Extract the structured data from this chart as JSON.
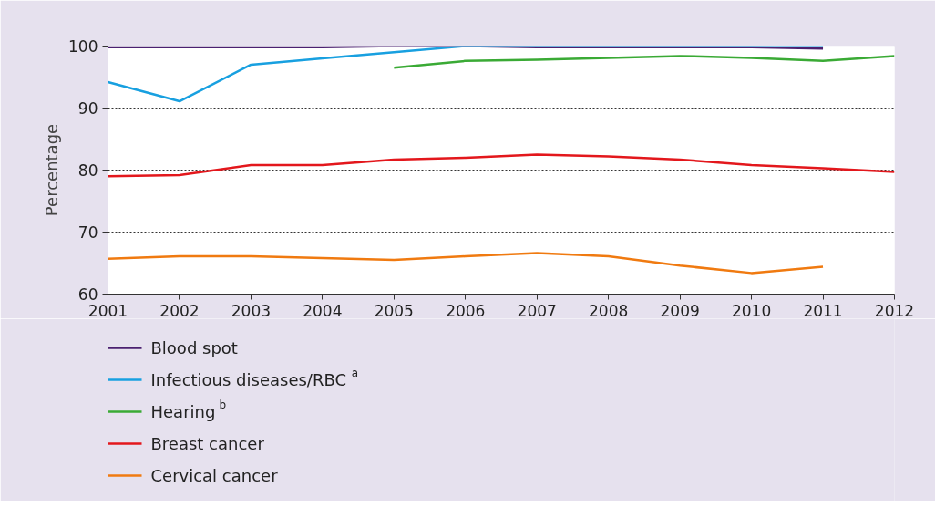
{
  "chart_data": {
    "type": "line",
    "ylabel": "Percentage",
    "x": [
      2001,
      2002,
      2003,
      2004,
      2005,
      2006,
      2007,
      2008,
      2009,
      2010,
      2011,
      2012
    ],
    "series": [
      {
        "name": "Blood spot",
        "color": "#4b2070",
        "values": [
          99.8,
          99.8,
          99.8,
          99.8,
          100,
          100,
          99.8,
          99.8,
          99.8,
          99.8,
          99.6,
          null
        ]
      },
      {
        "name": "Infectious diseases/RBC $^{a}$",
        "color": "#18a0e0",
        "values": [
          94.2,
          91.1,
          97,
          98,
          99,
          100,
          100,
          100,
          100,
          100,
          100,
          null
        ]
      },
      {
        "name": "Hearing $^{b}$",
        "color": "#3aaa35",
        "values": [
          null,
          null,
          null,
          null,
          96.5,
          97.6,
          97.8,
          98.1,
          98.4,
          98.1,
          97.6,
          98.4
        ]
      },
      {
        "name": "Breast cancer",
        "color": "#e3171c",
        "values": [
          79,
          79.2,
          80.8,
          80.8,
          81.7,
          82,
          82.5,
          82.2,
          81.7,
          80.8,
          80.3,
          79.7
        ]
      },
      {
        "name": "Cervical cancer",
        "color": "#f07a10",
        "values": [
          65.7,
          66.1,
          66.1,
          65.8,
          65.5,
          66.1,
          66.6,
          66.1,
          64.6,
          63.4,
          64.4,
          null
        ]
      }
    ],
    "xlim": [
      2001,
      2012
    ],
    "xticks": [
      2001,
      2002,
      2003,
      2004,
      2005,
      2006,
      2007,
      2008,
      2009,
      2010,
      2011,
      2012
    ],
    "ylim": [
      60,
      100
    ],
    "yticks": [
      60,
      70,
      80,
      90,
      100
    ],
    "grid": "y",
    "legend": "bottom",
    "marker": "none",
    "line_style": "solid"
  }
}
